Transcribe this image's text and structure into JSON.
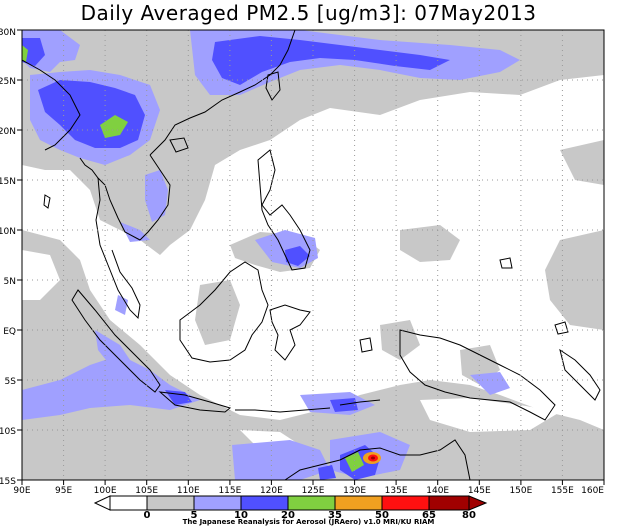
{
  "title": "Daily Averaged PM2.5 [ug/m3]: 07May2013",
  "credit": "The Japanese Reanalysis for Aerosol (JRAero) v1.0 MRI/KU RIAM",
  "map": {
    "lon_range": [
      90,
      160
    ],
    "lat_range": [
      -15,
      30
    ],
    "lon_ticks": [
      "90E",
      "95E",
      "100E",
      "105E",
      "110E",
      "115E",
      "120E",
      "125E",
      "130E",
      "135E",
      "140E",
      "145E",
      "150E",
      "155E",
      "160E"
    ],
    "lat_ticks": [
      "30N",
      "25N",
      "20N",
      "15N",
      "10N",
      "5N",
      "EQ",
      "5S",
      "10S",
      "15S"
    ],
    "grid": "dotted"
  },
  "colorbar": {
    "levels": [
      "0",
      "5",
      "10",
      "20",
      "35",
      "50",
      "65",
      "80"
    ],
    "colors": [
      "#ffffff",
      "#ffffff",
      "#c8c8c8",
      "#a0a0ff",
      "#5050ff",
      "#80d040",
      "#f0a020",
      "#ff1010",
      "#a00000"
    ]
  }
}
